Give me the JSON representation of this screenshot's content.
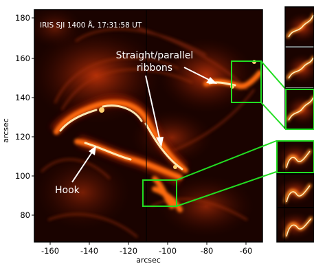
{
  "figure": {
    "caption": "IRIS SJI 1400 Å, 17:31:58 UT",
    "annotations": {
      "ribbons_line1": "Straight/parallel",
      "ribbons_line2": "ribbons",
      "hook": "Hook"
    },
    "x_axis": {
      "label": "arcsec",
      "ticks": [
        "-160",
        "-140",
        "-120",
        "-100",
        "-80",
        "-60"
      ]
    },
    "y_axis": {
      "label": "arcsec",
      "ticks": [
        "180",
        "160",
        "140",
        "120",
        "100",
        "80"
      ]
    },
    "colors": {
      "highlight_box": "#22dd22",
      "background_dark": "#1a0300",
      "emission_bright": "#fff2c0",
      "emission_mid": "#ff6a10",
      "emission_dim": "#8a1a00"
    }
  }
}
